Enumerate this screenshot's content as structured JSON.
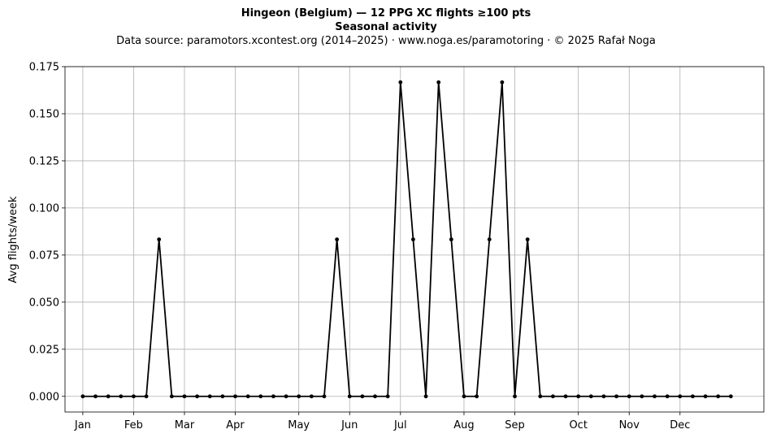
{
  "chart_data": {
    "type": "line",
    "title": "Hingeon (Belgium)  —  12 PPG XC flights ≥100 pts",
    "subtitle": "Seasonal activity",
    "source_note": "Data source: paramotors.xcontest.org (2014–2025)  ·  www.noga.es/paramotoring  ·  © 2025 Rafał Noga",
    "xlabel": "",
    "ylabel": "Avg flights/week",
    "ylim": [
      -0.0083,
      0.175
    ],
    "yticks": [
      0.0,
      0.025,
      0.05,
      0.075,
      0.1,
      0.125,
      0.15,
      0.175
    ],
    "ytick_labels": [
      "0.000",
      "0.025",
      "0.050",
      "0.075",
      "0.100",
      "0.125",
      "0.150",
      "0.175"
    ],
    "xlim": [
      -1.4,
      53.6
    ],
    "xticks": [
      {
        "label": "Jan",
        "week": 0
      },
      {
        "label": "Feb",
        "week": 4
      },
      {
        "label": "Mar",
        "week": 8
      },
      {
        "label": "Apr",
        "week": 12
      },
      {
        "label": "May",
        "week": 17
      },
      {
        "label": "Jun",
        "week": 21
      },
      {
        "label": "Jul",
        "week": 25
      },
      {
        "label": "Aug",
        "week": 30
      },
      {
        "label": "Sep",
        "week": 34
      },
      {
        "label": "Oct",
        "week": 39
      },
      {
        "label": "Nov",
        "week": 43
      },
      {
        "label": "Dec",
        "week": 47
      }
    ],
    "grid": true,
    "color": "#000000",
    "series": [
      {
        "x": [
          0,
          1,
          2,
          3,
          4,
          5,
          6,
          7,
          8,
          9,
          10,
          11,
          12,
          13,
          14,
          15,
          16,
          17,
          18,
          19,
          20,
          21,
          22,
          23,
          24,
          25,
          26,
          27,
          28,
          29,
          30,
          31,
          32,
          33,
          34,
          35,
          36,
          37,
          38,
          39,
          40,
          41,
          42,
          43,
          44,
          45,
          46,
          47,
          48,
          49,
          50,
          51
        ],
        "values": [
          0,
          0,
          0,
          0,
          0,
          0,
          0.0833,
          0,
          0,
          0,
          0,
          0,
          0,
          0,
          0,
          0,
          0,
          0,
          0,
          0,
          0.0833,
          0,
          0,
          0,
          0,
          0.1667,
          0.0833,
          0,
          0.1667,
          0.0833,
          0,
          0,
          0.0833,
          0.1667,
          0,
          0.0833,
          0,
          0,
          0,
          0,
          0,
          0,
          0,
          0,
          0,
          0,
          0,
          0,
          0,
          0,
          0,
          0
        ]
      }
    ]
  }
}
